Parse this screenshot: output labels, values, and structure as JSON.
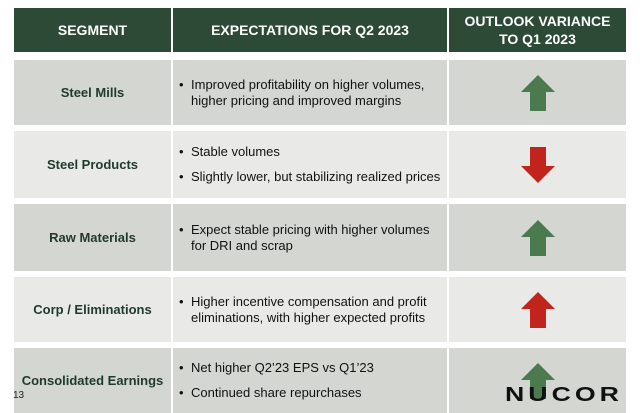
{
  "header": {
    "col1": "SEGMENT",
    "col2": "EXPECTATIONS FOR Q2 2023",
    "col3_line1": "OUTLOOK VARIANCE",
    "col3_line2": "TO Q1 2023"
  },
  "rows": [
    {
      "segment": "Steel Mills",
      "bullets": [
        "Improved profitability on higher volumes, higher pricing and improved margins"
      ],
      "direction": "up",
      "color": "#4a7a4e"
    },
    {
      "segment": "Steel Products",
      "bullets": [
        "Stable volumes",
        "Slightly lower, but stabilizing realized prices"
      ],
      "direction": "down",
      "color": "#c0241c"
    },
    {
      "segment": "Raw Materials",
      "bullets": [
        "Expect stable pricing with higher volumes for DRI and scrap"
      ],
      "direction": "up",
      "color": "#4a7a4e"
    },
    {
      "segment": "Corp / Eliminations",
      "bullets": [
        "Higher incentive compensation and profit eliminations, with higher expected profits"
      ],
      "direction": "up",
      "color": "#c0241c"
    },
    {
      "segment": "Consolidated Earnings",
      "bullets": [
        "Net higher Q2’23 EPS vs Q1’23",
        "Continued share repurchases"
      ],
      "direction": "up",
      "color": "#4a7a4e"
    }
  ],
  "footer": {
    "page_number": "13",
    "logo": "NUCOR"
  }
}
